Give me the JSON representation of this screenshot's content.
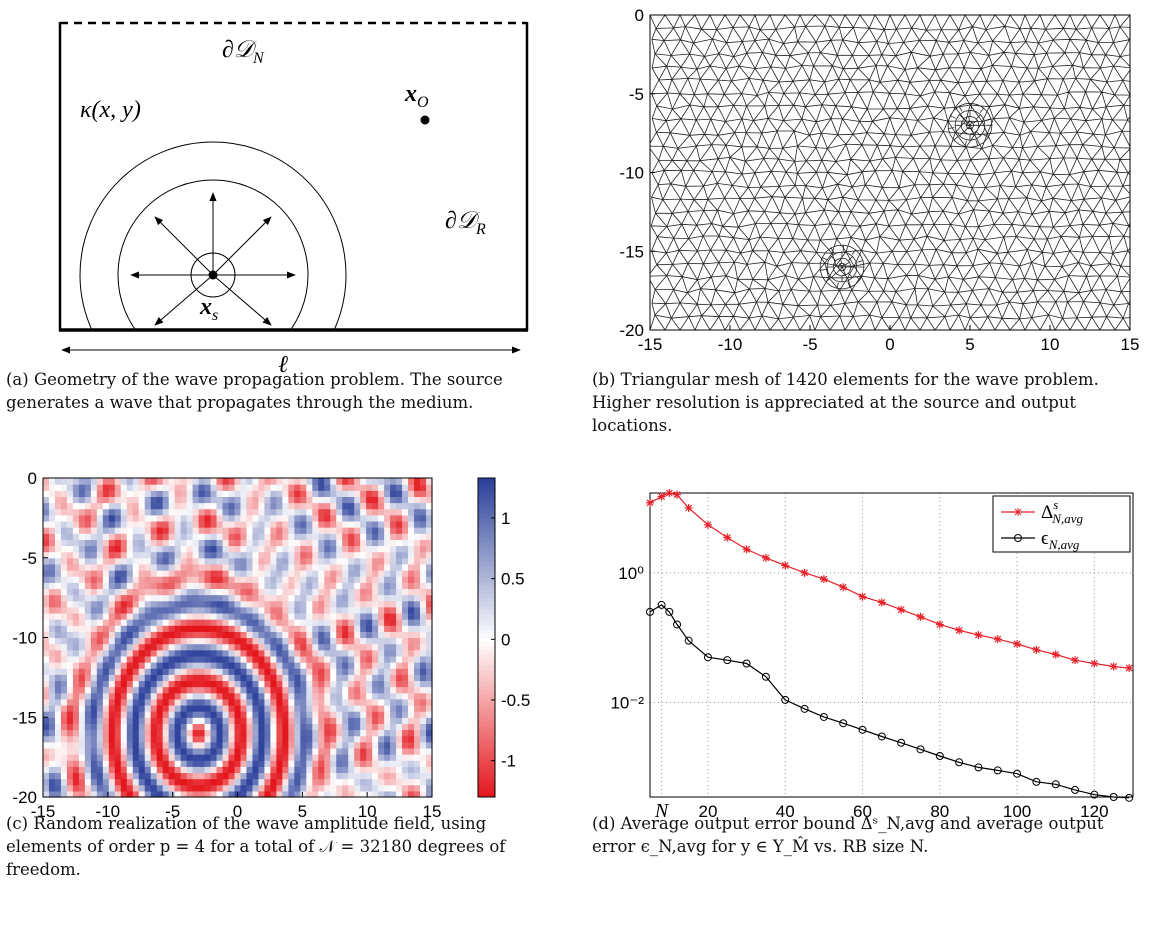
{
  "diagram": {
    "labels": {
      "boundary_n": {
        "text": "∂𝒟",
        "sub": "N"
      },
      "kappa": "κ(x, y)",
      "output": {
        "text": "x",
        "sub": "O"
      },
      "boundary_r": {
        "text": "∂𝒟",
        "sub": "R"
      },
      "source": {
        "text": "x",
        "sub": "s"
      },
      "length": "ℓ"
    },
    "caption": "(a) Geometry of the wave propagation problem. The source generates a wave that propagates through the medium."
  },
  "chart_data": [
    {
      "type": "mesh",
      "xlim": [
        -15,
        15
      ],
      "ylim": [
        -20,
        0
      ],
      "xticks": [
        -15,
        -10,
        -5,
        0,
        5,
        10,
        15
      ],
      "yticks": [
        0,
        -5,
        -10,
        -15,
        -20
      ],
      "caption": "(b) Triangular mesh of 1420 elements for the wave problem.  Higher resolution is appreciated at the source and output locations."
    },
    {
      "type": "heatmap",
      "xlim": [
        -15,
        15
      ],
      "ylim": [
        -20,
        0
      ],
      "xticks": [
        -15,
        -10,
        -5,
        0,
        5,
        10,
        15
      ],
      "yticks": [
        0,
        -5,
        -10,
        -15,
        -20
      ],
      "clim": [
        -1.3,
        1.33
      ],
      "cticks": [
        1,
        0.5,
        0,
        -0.5,
        -1
      ],
      "caption": "(c) Random realization of the wave amplitude field, using elements of order p = 4 for a total of 𝒩 = 32180 degrees of freedom."
    },
    {
      "type": "line",
      "log_y": true,
      "grid": true,
      "legend": "upper right",
      "xlim": [
        5,
        130
      ],
      "ylim": [
        0.00035,
        17
      ],
      "xticks": [
        {
          "value": 8,
          "label": "N"
        },
        20,
        40,
        60,
        80,
        100,
        120
      ],
      "yticks": [
        {
          "value": 1,
          "label": "10⁰"
        },
        {
          "value": 0.01,
          "label": "10⁻²"
        }
      ],
      "x": [
        5,
        8,
        10,
        12,
        15,
        20,
        25,
        30,
        35,
        40,
        45,
        50,
        55,
        60,
        65,
        70,
        75,
        80,
        85,
        90,
        95,
        100,
        105,
        110,
        115,
        120,
        125,
        129
      ],
      "series": [
        {
          "name": "Δ",
          "name_sup": "s",
          "name_sub": "N,avg",
          "color": "#e8222a",
          "marker": "star",
          "values": [
            12,
            15,
            17,
            16,
            10,
            5.5,
            3.5,
            2.3,
            1.7,
            1.3,
            1.0,
            0.8,
            0.6,
            0.43,
            0.35,
            0.27,
            0.21,
            0.16,
            0.13,
            0.11,
            0.095,
            0.08,
            0.065,
            0.055,
            0.045,
            0.04,
            0.036,
            0.034
          ]
        },
        {
          "name": "ϵ",
          "name_sub": "N,avg",
          "color": "#000000",
          "marker": "circle",
          "values": [
            0.25,
            0.32,
            0.25,
            0.16,
            0.09,
            0.05,
            0.045,
            0.04,
            0.025,
            0.011,
            0.008,
            0.006,
            0.0048,
            0.0038,
            0.003,
            0.0024,
            0.0019,
            0.0015,
            0.0012,
            0.001,
            0.0009,
            0.0008,
            0.0006,
            0.00055,
            0.00045,
            0.00038,
            0.00035,
            0.00034
          ]
        }
      ],
      "caption": "(d) Average output error bound Δˢ_N,avg and average output error ϵ_N,avg for y ∈ Y_M̂ vs. RB size N."
    }
  ]
}
